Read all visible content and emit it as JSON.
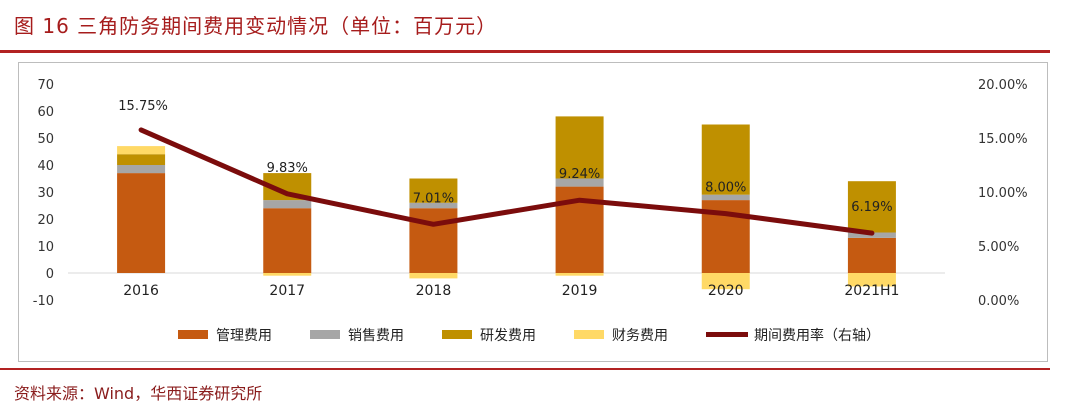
{
  "title": "图 16 三角防务期间费用变动情况（单位：百万元）",
  "source": "资料来源：Wind，华西证券研究所",
  "colors": {
    "mgmt": "#c55a11",
    "sales": "#a6a6a6",
    "rd": "#bf9000",
    "fin": "#ffd966",
    "rate": "#7b0c0c",
    "accent": "#b22222"
  },
  "chart_data": {
    "type": "bar",
    "stacked": true,
    "categories": [
      "2016",
      "2017",
      "2018",
      "2019",
      "2020",
      "2021H1"
    ],
    "series": [
      {
        "name": "管理费用",
        "axis": "left",
        "values": [
          37,
          24,
          24,
          32,
          27,
          13
        ]
      },
      {
        "name": "销售费用",
        "axis": "left",
        "values": [
          3,
          3,
          2,
          3,
          2,
          2
        ]
      },
      {
        "name": "研发费用",
        "axis": "left",
        "values": [
          4,
          10,
          9,
          23,
          26,
          19
        ]
      },
      {
        "name": "财务费用",
        "axis": "left",
        "values": [
          3,
          -1,
          -2,
          -1,
          -6,
          -5
        ]
      },
      {
        "name": "期间费用率（右轴）",
        "axis": "right",
        "type": "line",
        "values": [
          15.75,
          9.83,
          7.01,
          9.24,
          8.0,
          6.19
        ],
        "labels": [
          "15.75%",
          "9.83%",
          "7.01%",
          "9.24%",
          "8.00%",
          "6.19%"
        ]
      }
    ],
    "y_left": {
      "min": -10,
      "max": 70,
      "ticks": [
        "70",
        "60",
        "50",
        "40",
        "30",
        "20",
        "10",
        "0",
        "-10"
      ]
    },
    "y_right": {
      "min": 0,
      "max": 20,
      "ticks": [
        "20.00%",
        "15.00%",
        "10.00%",
        "5.00%",
        "0.00%"
      ]
    },
    "legend_position": "bottom",
    "grid": false
  }
}
